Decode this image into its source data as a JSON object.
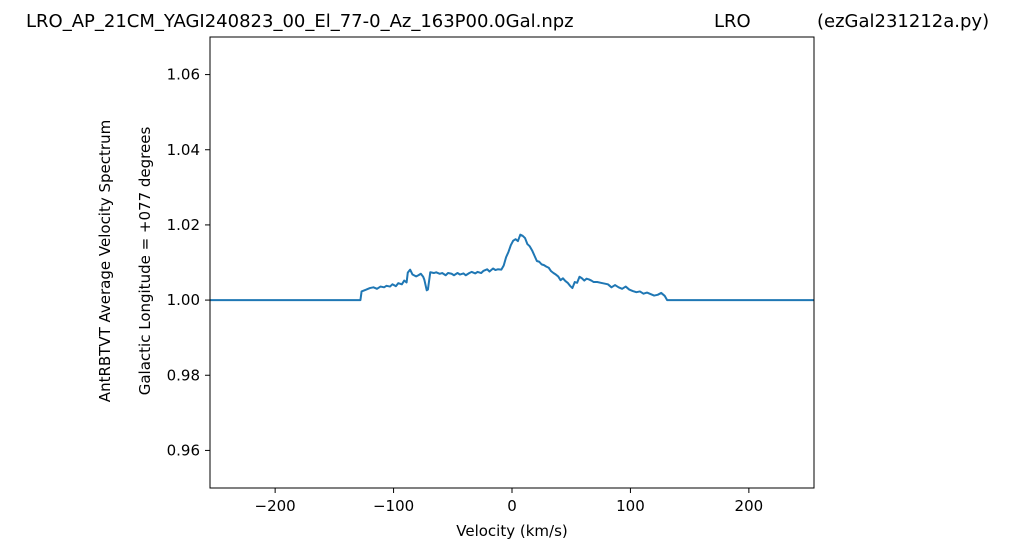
{
  "header": {
    "file_name": "LRO_AP_21CM_YAGI240823_00_El_77-0_Az_163P00.0Gal.npz",
    "station": "LRO",
    "program": "(ezGal231212a.py)"
  },
  "chart_data": {
    "type": "line",
    "title": "LRO_AP_21CM_YAGI240823_00_El_77-0_Az_163P00.0Gal.npz            LRO          (ezGal231212a.py)",
    "xlabel": "Velocity (km/s)",
    "ylabel_line1": "AntRBTVT Average Velocity Spectrum",
    "ylabel_line2": "Galactic Longitude = +077 degrees",
    "xlim": [
      -255,
      255
    ],
    "ylim": [
      0.95,
      1.07
    ],
    "xticks": [
      -200,
      -100,
      0,
      100,
      200
    ],
    "xtick_labels": [
      "−200",
      "−100",
      "0",
      "100",
      "200"
    ],
    "yticks": [
      0.96,
      0.98,
      1.0,
      1.02,
      1.04,
      1.06
    ],
    "ytick_labels": [
      "0.96",
      "0.98",
      "1.00",
      "1.02",
      "1.04",
      "1.06"
    ],
    "grid": false,
    "line_color": "#1f77b4",
    "series": [
      {
        "x": [
          -255,
          -128,
          -127,
          -123,
          -120,
          -117,
          -114,
          -111,
          -108,
          -106,
          -103,
          -101,
          -98,
          -96,
          -93,
          -91,
          -89,
          -88,
          -86,
          -84,
          -81,
          -79,
          -77,
          -75,
          -74,
          -72,
          -71,
          -69,
          -66,
          -64,
          -61,
          -59,
          -56,
          -54,
          -51,
          -49,
          -46,
          -44,
          -41,
          -39,
          -36,
          -34,
          -31,
          -29,
          -26,
          -24,
          -21,
          -19,
          -16,
          -14,
          -12,
          -9,
          -7,
          -5,
          -3,
          -1,
          1,
          3,
          5,
          7,
          9,
          11,
          13,
          15,
          17,
          19,
          21,
          23,
          25,
          27,
          29,
          31,
          33,
          35,
          37,
          39,
          41,
          43,
          45,
          47,
          49,
          51,
          53,
          55,
          57,
          59,
          61,
          63,
          65,
          67,
          69,
          72,
          75,
          78,
          81,
          84,
          87,
          90,
          93,
          96,
          99,
          102,
          105,
          108,
          111,
          114,
          117,
          120,
          123,
          126,
          129,
          131,
          255
        ],
        "y": [
          1.0,
          1.0,
          1.0023,
          1.0028,
          1.0032,
          1.0034,
          1.003,
          1.0036,
          1.0034,
          1.0038,
          1.0036,
          1.0042,
          1.0037,
          1.0045,
          1.0042,
          1.0052,
          1.0047,
          1.0073,
          1.0081,
          1.0068,
          1.0063,
          1.0066,
          1.007,
          1.0062,
          1.0054,
          1.0026,
          1.0028,
          1.0074,
          1.0072,
          1.0074,
          1.007,
          1.0072,
          1.0066,
          1.0072,
          1.007,
          1.0066,
          1.0072,
          1.0068,
          1.0071,
          1.0066,
          1.0072,
          1.0075,
          1.0071,
          1.0075,
          1.0072,
          1.0078,
          1.0082,
          1.0076,
          1.0084,
          1.008,
          1.0082,
          1.0081,
          1.0092,
          1.0114,
          1.0128,
          1.0146,
          1.0158,
          1.0162,
          1.0157,
          1.0174,
          1.0171,
          1.0165,
          1.0149,
          1.0143,
          1.0132,
          1.0118,
          1.0104,
          1.0102,
          1.0095,
          1.0093,
          1.0089,
          1.0086,
          1.0077,
          1.0072,
          1.0068,
          1.0063,
          1.0053,
          1.0058,
          1.0051,
          1.0046,
          1.0038,
          1.0032,
          1.0048,
          1.0046,
          1.0062,
          1.0058,
          1.0052,
          1.0057,
          1.0055,
          1.0052,
          1.0048,
          1.0048,
          1.0046,
          1.0044,
          1.0042,
          1.0034,
          1.004,
          1.0034,
          1.003,
          1.0036,
          1.0028,
          1.0024,
          1.0021,
          1.0023,
          1.0017,
          1.002,
          1.0016,
          1.0012,
          1.0014,
          1.0019,
          1.0011,
          1.0,
          1.0
        ]
      }
    ]
  }
}
